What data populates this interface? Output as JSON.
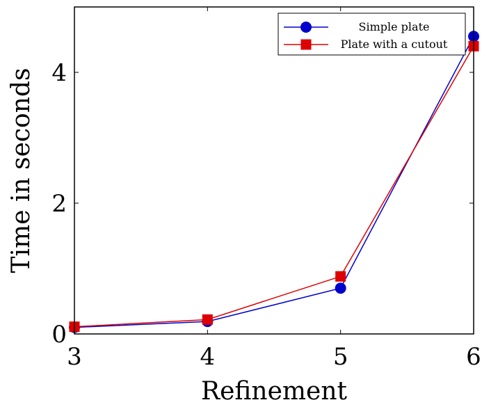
{
  "chart_data": {
    "type": "line",
    "x": [
      3,
      4,
      5,
      6
    ],
    "xlabel": "Refinement",
    "ylabel": "Time in seconds",
    "xlim": [
      3,
      6
    ],
    "ylim": [
      0,
      5
    ],
    "xticks": [
      3,
      4,
      5,
      6
    ],
    "yticks": [
      0,
      2,
      4
    ],
    "grid": false,
    "legend_position": "top-right",
    "series": [
      {
        "name": "Simple plate",
        "values": [
          0.1,
          0.19,
          0.7,
          4.55
        ],
        "color": "#0000cc",
        "marker": "circle"
      },
      {
        "name": "Plate with a cutout",
        "values": [
          0.11,
          0.22,
          0.88,
          4.4
        ],
        "color": "#dd0000",
        "marker": "square"
      }
    ]
  }
}
